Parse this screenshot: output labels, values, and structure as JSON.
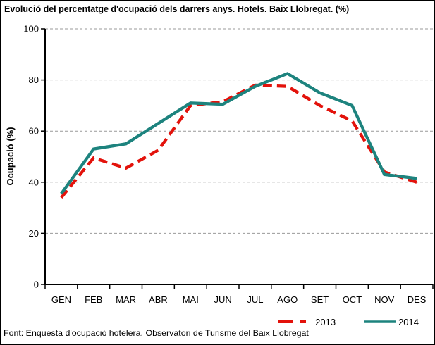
{
  "title": "Evolució del percentatge d'ocupació dels darrers anys. Hotels. Baix Llobregat. (%)",
  "footer": "Font: Enquesta d'ocupació hotelera. Observatori de Turisme del Baix Llobregat",
  "colors": {
    "series_2013": "#e3120b",
    "series_2014": "#1d837e",
    "grid": "#999999",
    "axis": "#000000",
    "background": "#ffffff"
  },
  "legend": {
    "items": [
      {
        "label": "2013"
      },
      {
        "label": "2014"
      }
    ]
  },
  "chart_data": {
    "type": "line",
    "title": "Evolució del percentatge d'ocupació dels darrers anys. Hotels. Baix Llobregat. (%)",
    "categories": [
      "GEN",
      "FEB",
      "MAR",
      "ABR",
      "MAI",
      "JUN",
      "JUL",
      "AGO",
      "SET",
      "OCT",
      "NOV",
      "DES"
    ],
    "series": [
      {
        "name": "2013",
        "style": "dashed",
        "color": "#e3120b",
        "values": [
          34,
          49.5,
          45.5,
          52.5,
          70,
          71.5,
          78,
          77.5,
          70,
          64,
          44,
          40
        ]
      },
      {
        "name": "2014",
        "style": "solid",
        "color": "#1d837e",
        "values": [
          35.5,
          53,
          55,
          63,
          71,
          70.5,
          77.5,
          82.5,
          75,
          70,
          43,
          41.5
        ]
      }
    ],
    "xlabel": "",
    "ylabel": "Ocupació (%)",
    "ylim": [
      0,
      100
    ],
    "yticks": [
      0,
      20,
      40,
      60,
      80,
      100
    ],
    "grid": true,
    "legend_position": "bottom-right"
  }
}
